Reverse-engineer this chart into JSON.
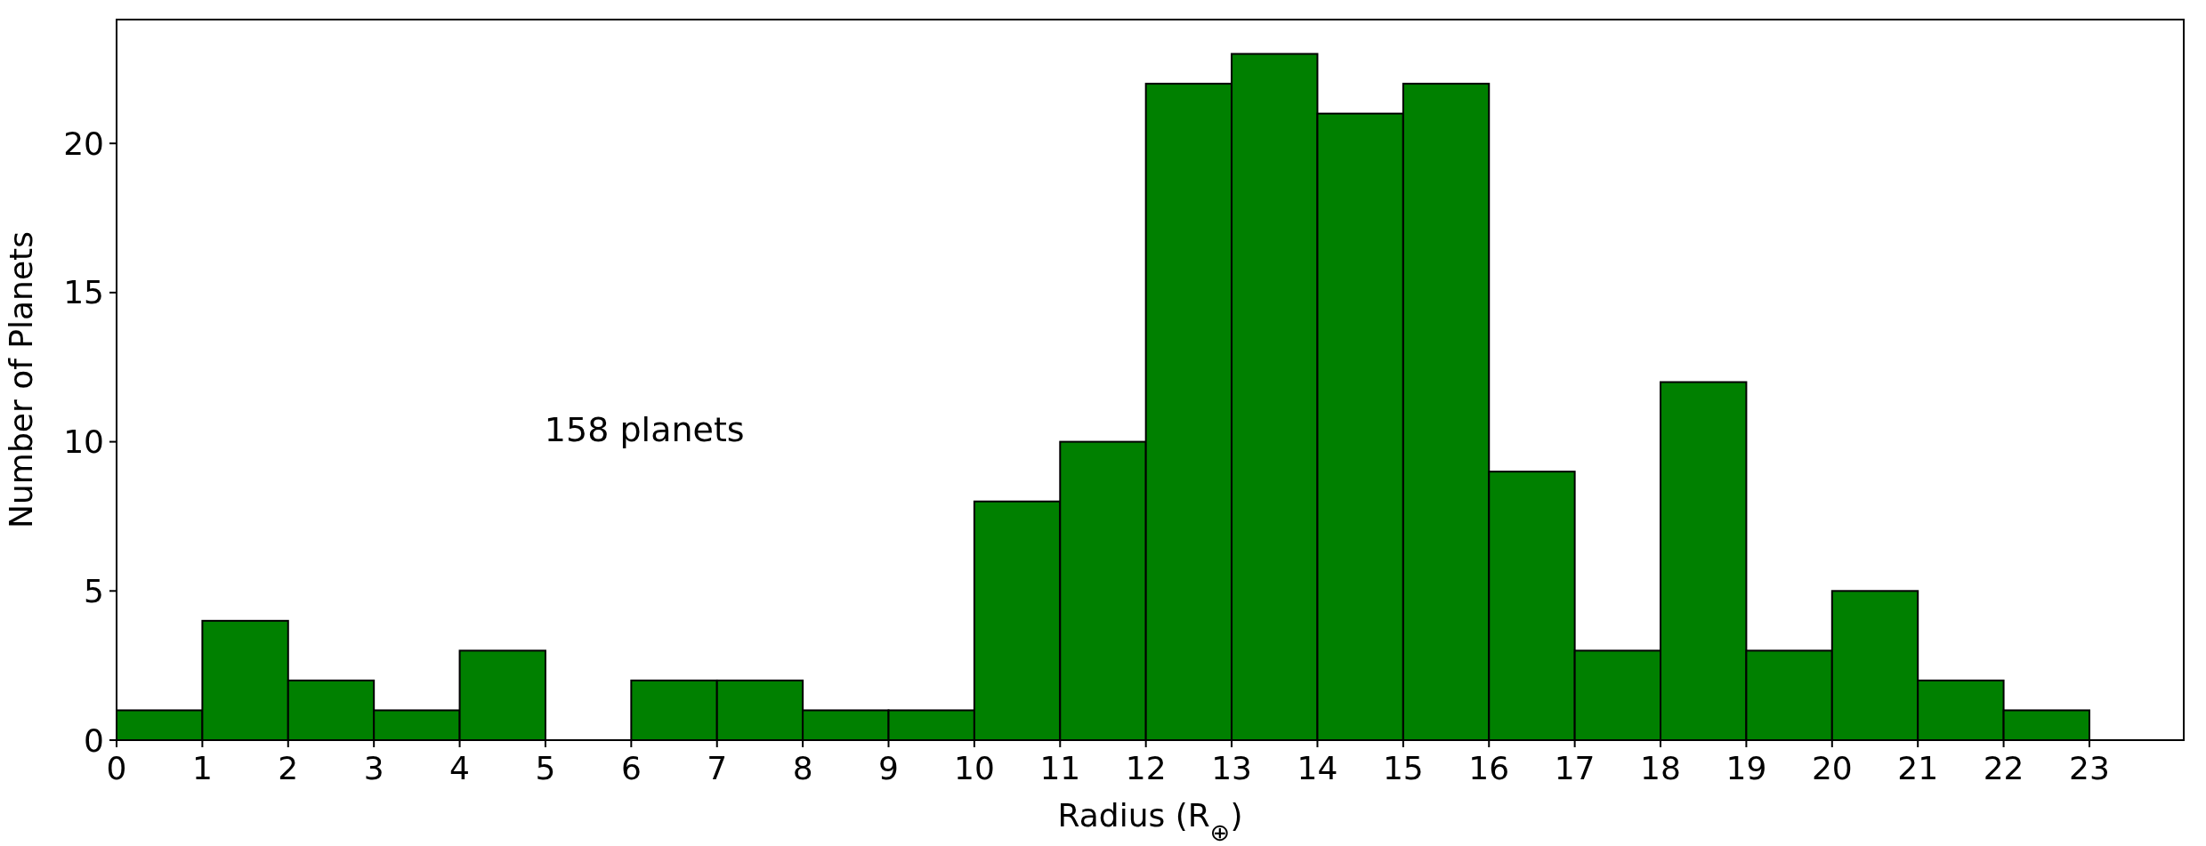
{
  "chart_data": {
    "type": "histogram",
    "xlabel": "Radius (R$_{⊕}$)",
    "ylabel": "Number of Planets",
    "bins": [
      0,
      1,
      2,
      3,
      4,
      5,
      6,
      7,
      8,
      9,
      10,
      11,
      12,
      13,
      14,
      15,
      16,
      17,
      18,
      19,
      20,
      21,
      22,
      23
    ],
    "values": [
      1,
      4,
      2,
      1,
      3,
      0,
      2,
      2,
      1,
      1,
      8,
      10,
      22,
      23,
      21,
      22,
      9,
      3,
      12,
      3,
      5,
      2,
      1
    ],
    "color": "#008000",
    "xlim": [
      0,
      24.1
    ],
    "xticks": [
      0,
      1,
      2,
      3,
      4,
      5,
      6,
      7,
      8,
      9,
      10,
      11,
      12,
      13,
      14,
      15,
      16,
      17,
      18,
      19,
      20,
      21,
      22,
      23
    ],
    "ylim": [
      0,
      24.15
    ],
    "yticks": [
      0,
      5,
      10,
      15,
      20
    ],
    "annotations": [
      "158 planets"
    ]
  }
}
